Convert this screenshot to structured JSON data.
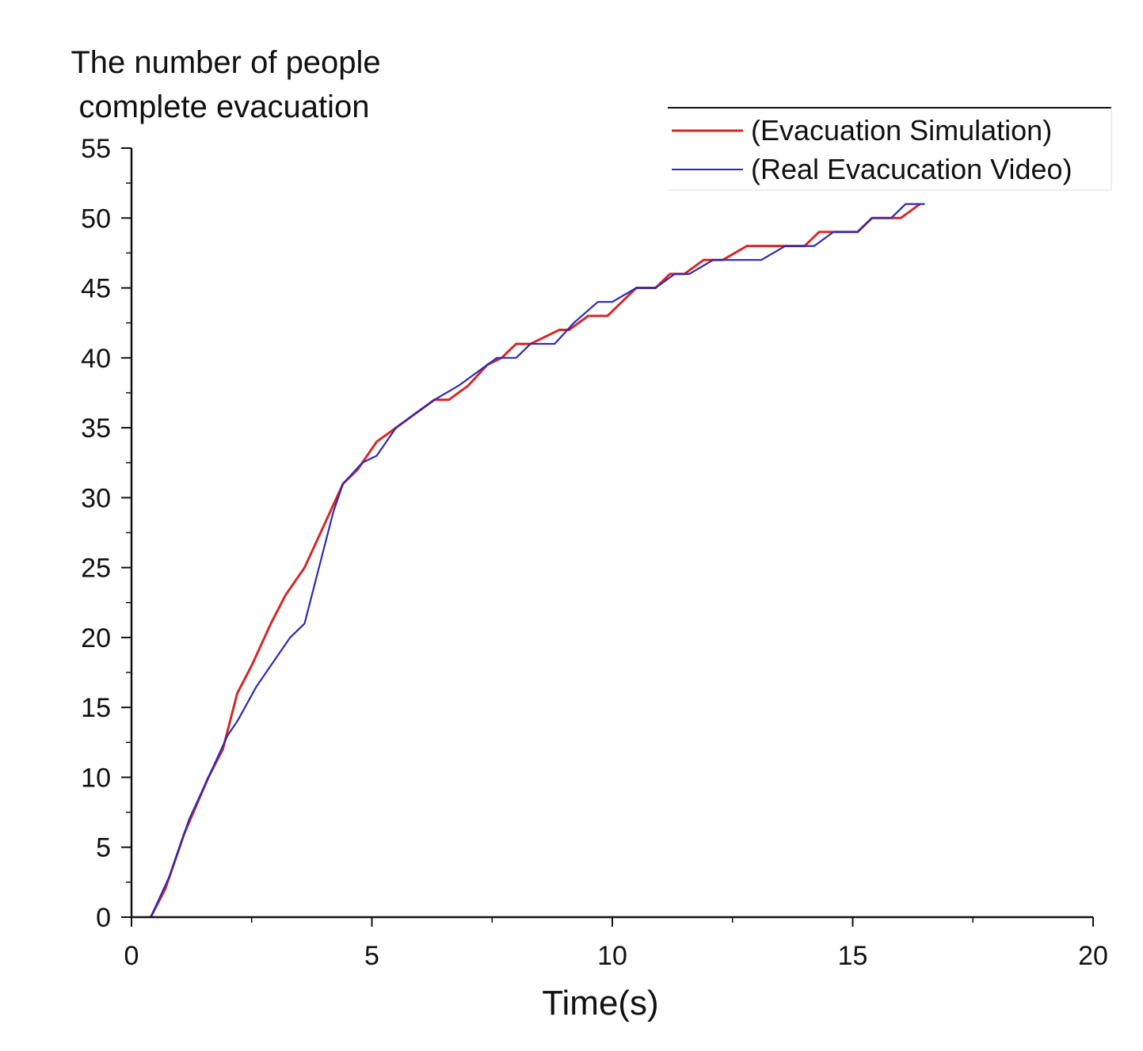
{
  "chart_data": {
    "type": "line",
    "ylabel_lines": [
      "The number of people",
      "complete evacuation"
    ],
    "xlabel": "Time(s)",
    "xlim": [
      0,
      20
    ],
    "ylim": [
      0,
      55
    ],
    "x_ticks": [
      "0",
      "5",
      "10",
      "15",
      "20"
    ],
    "y_ticks": [
      "0",
      "5",
      "10",
      "15",
      "20",
      "25",
      "30",
      "35",
      "40",
      "45",
      "50",
      "55"
    ],
    "grid": false,
    "legend_position": "top-right",
    "series": [
      {
        "name": "(Evacuation Simulation)",
        "color": "#d62728",
        "points": [
          [
            0.4,
            0
          ],
          [
            0.7,
            2
          ],
          [
            1.1,
            6
          ],
          [
            1.6,
            10
          ],
          [
            1.9,
            12
          ],
          [
            2.2,
            16
          ],
          [
            2.5,
            18
          ],
          [
            2.9,
            21
          ],
          [
            3.2,
            23
          ],
          [
            3.6,
            25
          ],
          [
            4.0,
            28
          ],
          [
            4.4,
            31
          ],
          [
            4.7,
            32
          ],
          [
            5.1,
            34
          ],
          [
            5.5,
            35
          ],
          [
            5.9,
            36
          ],
          [
            6.3,
            37
          ],
          [
            6.6,
            37
          ],
          [
            7.0,
            38
          ],
          [
            7.4,
            39.5
          ],
          [
            7.7,
            40
          ],
          [
            8.0,
            41
          ],
          [
            8.3,
            41
          ],
          [
            8.6,
            41.5
          ],
          [
            8.9,
            42
          ],
          [
            9.1,
            42
          ],
          [
            9.5,
            43
          ],
          [
            9.9,
            43
          ],
          [
            10.2,
            44
          ],
          [
            10.5,
            45
          ],
          [
            10.9,
            45
          ],
          [
            11.2,
            46
          ],
          [
            11.5,
            46
          ],
          [
            11.9,
            47
          ],
          [
            12.3,
            47
          ],
          [
            12.8,
            48
          ],
          [
            13.2,
            48
          ],
          [
            13.6,
            48
          ],
          [
            14.0,
            48
          ],
          [
            14.3,
            49
          ],
          [
            14.8,
            49
          ],
          [
            15.1,
            49
          ],
          [
            15.4,
            50
          ],
          [
            16.0,
            50
          ],
          [
            16.4,
            51
          ]
        ]
      },
      {
        "name": "(Real Evacucation Video)",
        "color": "#2b2bb0",
        "points": [
          [
            0.4,
            0
          ],
          [
            0.8,
            3
          ],
          [
            1.2,
            7
          ],
          [
            1.6,
            10
          ],
          [
            2.0,
            13
          ],
          [
            2.2,
            14
          ],
          [
            2.6,
            16.5
          ],
          [
            3.0,
            18.5
          ],
          [
            3.3,
            20
          ],
          [
            3.6,
            21
          ],
          [
            3.9,
            25
          ],
          [
            4.2,
            29
          ],
          [
            4.4,
            31
          ],
          [
            4.8,
            32.5
          ],
          [
            5.1,
            33
          ],
          [
            5.5,
            35
          ],
          [
            5.9,
            36
          ],
          [
            6.3,
            37
          ],
          [
            6.8,
            38
          ],
          [
            7.2,
            39
          ],
          [
            7.6,
            40
          ],
          [
            8.0,
            40
          ],
          [
            8.3,
            41
          ],
          [
            8.8,
            41
          ],
          [
            9.2,
            42.5
          ],
          [
            9.7,
            44
          ],
          [
            10.0,
            44
          ],
          [
            10.5,
            45
          ],
          [
            10.9,
            45
          ],
          [
            11.3,
            46
          ],
          [
            11.6,
            46
          ],
          [
            12.1,
            47
          ],
          [
            12.6,
            47
          ],
          [
            13.1,
            47
          ],
          [
            13.6,
            48
          ],
          [
            14.2,
            48
          ],
          [
            14.6,
            49
          ],
          [
            15.1,
            49
          ],
          [
            15.4,
            50
          ],
          [
            15.8,
            50
          ],
          [
            16.1,
            51
          ],
          [
            16.5,
            51
          ]
        ]
      }
    ]
  }
}
